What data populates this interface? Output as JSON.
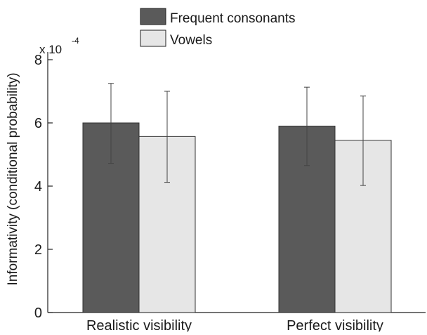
{
  "chart_data": {
    "type": "bar",
    "categories": [
      "Realistic visibility",
      "Perfect visibility"
    ],
    "series": [
      {
        "name": "Frequent consonants",
        "values": [
          6.0,
          5.9
        ],
        "err_low": [
          4.72,
          4.65
        ],
        "err_high": [
          7.25,
          7.13
        ],
        "color": "#5a5a5a"
      },
      {
        "name": "Vowels",
        "values": [
          5.57,
          5.45
        ],
        "err_low": [
          4.12,
          4.02
        ],
        "err_high": [
          7.0,
          6.85
        ],
        "color": "#e6e6e6"
      }
    ],
    "ylabel": "Informativity (conditional probability)",
    "ylim": [
      0,
      8
    ],
    "yticks": [
      0,
      2,
      4,
      6,
      8
    ],
    "ytick_labels": [
      "0",
      "2",
      "4",
      "6",
      "8"
    ],
    "y_exponent_prefix": "x 10",
    "y_exponent": "-4",
    "grid": false,
    "legend_position": "top"
  }
}
